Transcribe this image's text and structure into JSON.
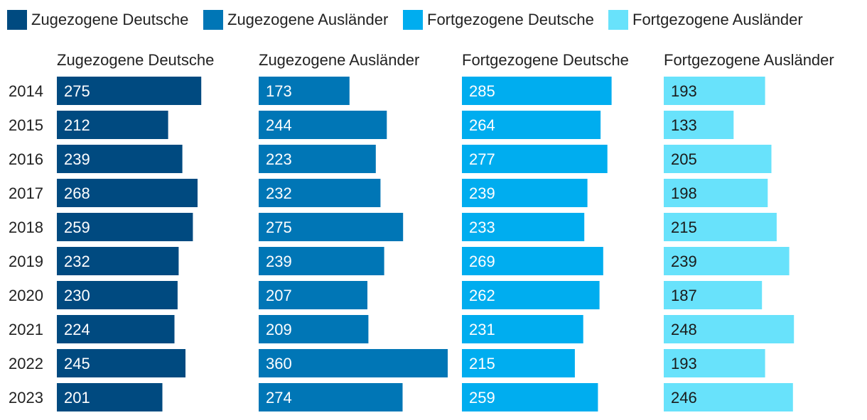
{
  "chart_data": {
    "type": "bar",
    "orientation": "horizontal",
    "layout": "small-multiples",
    "legend_position": "top",
    "categories": [
      "2014",
      "2015",
      "2016",
      "2017",
      "2018",
      "2019",
      "2020",
      "2021",
      "2022",
      "2023"
    ],
    "series": [
      {
        "name": "Zugezogene Deutsche",
        "color": "#004a80",
        "values": [
          275,
          212,
          239,
          268,
          259,
          232,
          230,
          224,
          245,
          201
        ]
      },
      {
        "name": "Zugezogene Ausländer",
        "color": "#0076b6",
        "values": [
          173,
          244,
          223,
          232,
          275,
          239,
          207,
          209,
          360,
          274
        ]
      },
      {
        "name": "Fortgezogene Deutsche",
        "color": "#00adef",
        "values": [
          285,
          264,
          277,
          239,
          233,
          269,
          262,
          231,
          215,
          259
        ]
      },
      {
        "name": "Fortgezogene Ausländer",
        "color": "#68e2fb",
        "values": [
          193,
          133,
          205,
          198,
          215,
          239,
          187,
          248,
          193,
          246
        ]
      }
    ],
    "xlim": [
      0,
      360
    ],
    "grid": false
  }
}
